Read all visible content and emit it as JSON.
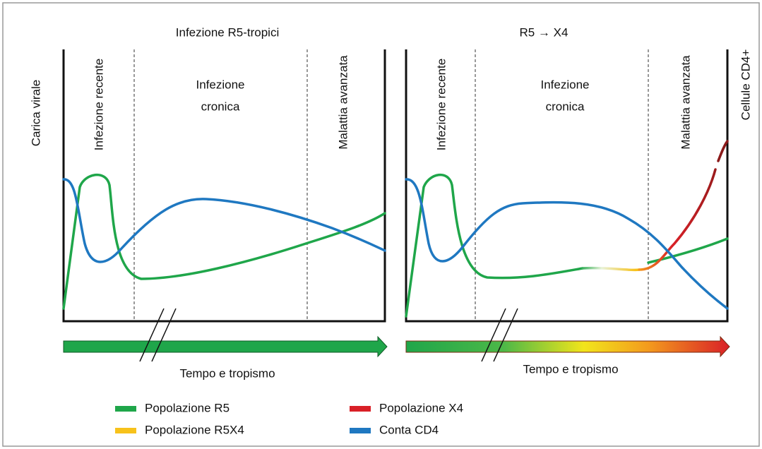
{
  "panels": [
    {
      "title": "Infezione R5-tropici",
      "phase_early": "Infezione recente",
      "phase_chronic": [
        "Infezione",
        "cronica"
      ],
      "phase_late": "Malattia avanzata",
      "x_label": "Tempo e tropismo"
    },
    {
      "title": "R5 → X4",
      "phase_early": "Infezione recente",
      "phase_chronic": [
        "Infezione",
        "cronica"
      ],
      "phase_late": "Malattia avanzata",
      "x_label": "Tempo e tropismo"
    }
  ],
  "y_left": "Carica virale",
  "y_right": "Cellule CD4+",
  "legend": [
    {
      "label": "Popolazione R5",
      "color": "#1fa64a"
    },
    {
      "label": "Popolazione R5X4",
      "color": "#f7c21b"
    },
    {
      "label": "Popolazione X4",
      "color": "#d92027"
    },
    {
      "label": "Conta CD4",
      "color": "#1f78c1"
    }
  ]
}
